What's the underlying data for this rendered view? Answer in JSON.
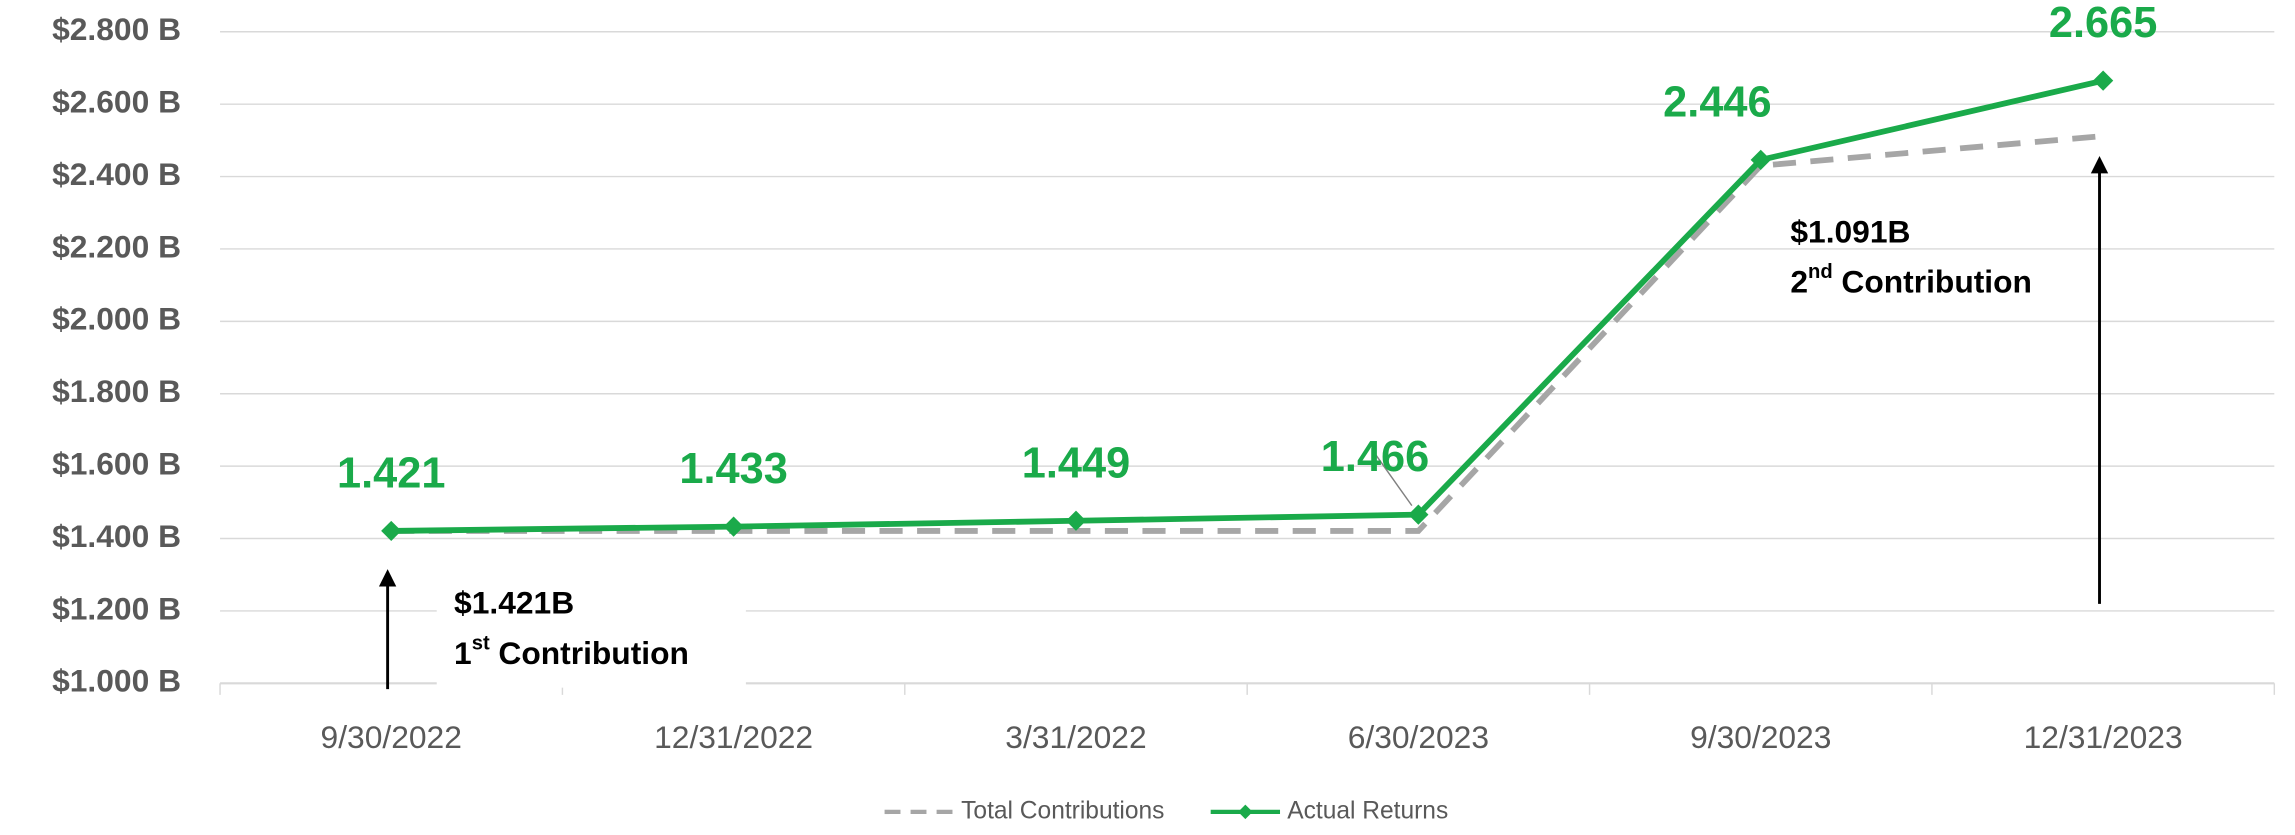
{
  "chart_data": {
    "type": "line",
    "categories": [
      "9/30/2022",
      "12/31/2022",
      "3/31/2022",
      "6/30/2023",
      "9/30/2023",
      "12/31/2023"
    ],
    "series": [
      {
        "name": "Total Contributions",
        "color": "#a6a6a6",
        "dashed": true,
        "markers": false,
        "values": [
          1.421,
          1.421,
          1.421,
          1.421,
          2.43,
          2.512
        ]
      },
      {
        "name": "Actual Returns",
        "color": "#1aaa4a",
        "dashed": false,
        "markers": true,
        "data_labels": true,
        "values": [
          1.421,
          1.433,
          1.449,
          1.466,
          2.446,
          2.665
        ]
      }
    ],
    "ylim": [
      1.0,
      2.8
    ],
    "yticks": [
      {
        "value": 1.0,
        "label": "$1.000 B"
      },
      {
        "value": 1.2,
        "label": "$1.200 B"
      },
      {
        "value": 1.4,
        "label": "$1.400 B"
      },
      {
        "value": 1.6,
        "label": "$1.600 B"
      },
      {
        "value": 1.8,
        "label": "$1.800 B"
      },
      {
        "value": 2.0,
        "label": "$2.000 B"
      },
      {
        "value": 2.2,
        "label": "$2.200 B"
      },
      {
        "value": 2.4,
        "label": "$2.400 B"
      },
      {
        "value": 2.6,
        "label": "$2.600 B"
      },
      {
        "value": 2.8,
        "label": "$2.800 B"
      }
    ],
    "grid": true,
    "legend": "bottom",
    "annotations": [
      {
        "amount": "$1.421B",
        "ordinal": "1",
        "suffix": "st",
        "label": "Contribution"
      },
      {
        "amount": "$1.091B",
        "ordinal": "2",
        "suffix": "nd",
        "label": "Contribution"
      }
    ]
  }
}
